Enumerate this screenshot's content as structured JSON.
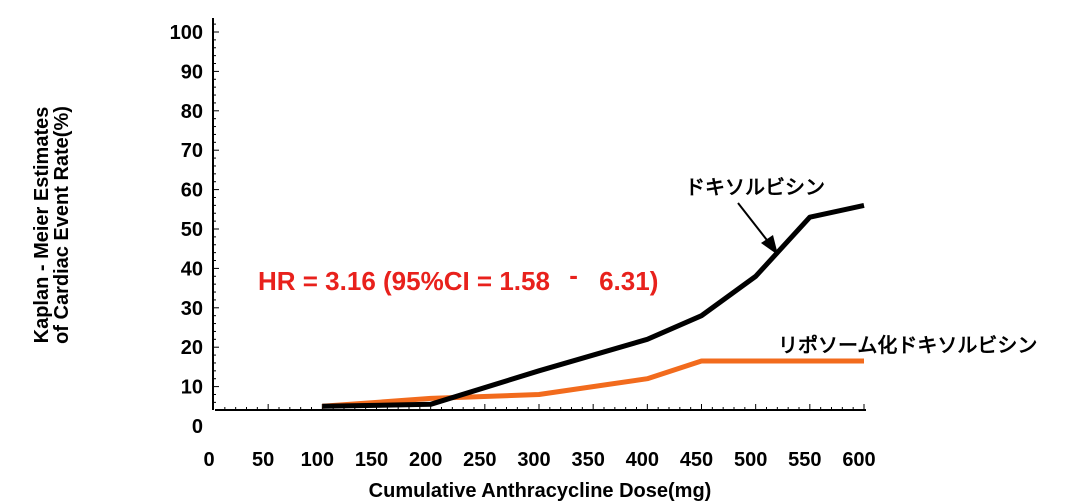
{
  "chart_data": {
    "type": "line",
    "xlabel": "Cumulative  Anthracycline Dose(mg)",
    "ylabel_line1": "Kaplan -   Meier Estimates",
    "ylabel_line2": "of Cardiac Event Rate(%)",
    "xlim": [
      0,
      600
    ],
    "ylim": [
      0,
      100
    ],
    "x_ticks": [
      0,
      50,
      100,
      150,
      200,
      250,
      300,
      350,
      400,
      450,
      500,
      550,
      600
    ],
    "y_ticks": [
      0,
      10,
      20,
      30,
      40,
      50,
      60,
      70,
      80,
      90,
      100
    ],
    "grid": false,
    "legend": "none",
    "series": [
      {
        "name": "ドキソルビシン",
        "color": "#000000",
        "x": [
          100,
          200,
          300,
          400,
          450,
          500,
          550,
          600
        ],
        "y": [
          5,
          5.5,
          14,
          22,
          28,
          38,
          53,
          56
        ]
      },
      {
        "name": "リポソーム化ドキソルビシン",
        "color": "#f26b1d",
        "x": [
          100,
          200,
          300,
          400,
          450,
          500,
          550,
          600
        ],
        "y": [
          5,
          7,
          8,
          12,
          16.5,
          16.5,
          16.5,
          16.5
        ]
      }
    ],
    "annotation": {
      "text": "HR = 3.16 (95%CI = 1.58",
      "dash": "-",
      "text_end": "6.31)",
      "color": "#e8211c"
    }
  }
}
